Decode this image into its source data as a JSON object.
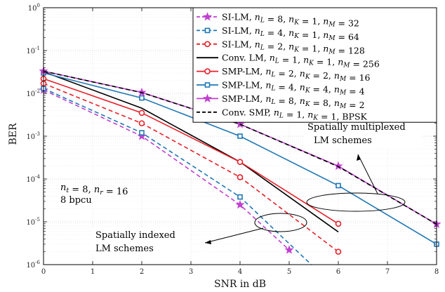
{
  "chart_data": {
    "type": "line",
    "xlabel": "SNR in dB",
    "ylabel": "BER",
    "xlim": [
      0,
      8
    ],
    "ylim": [
      1e-06,
      1
    ],
    "yscale": "log",
    "grid": true,
    "legend_position": "top-right",
    "x_ticks": [
      "0",
      "1",
      "2",
      "3",
      "4",
      "5",
      "6",
      "7",
      "8"
    ],
    "y_ticks": [
      {
        "base": "10",
        "exp": "-6"
      },
      {
        "base": "10",
        "exp": "-5"
      },
      {
        "base": "10",
        "exp": "-4"
      },
      {
        "base": "10",
        "exp": "-3"
      },
      {
        "base": "10",
        "exp": "-2"
      },
      {
        "base": "10",
        "exp": "-1"
      },
      {
        "base": "10",
        "exp": "0"
      }
    ],
    "series": [
      {
        "name": "SI-LM, n_L = 8, n_K = 1, n_M = 32",
        "legend_parts": [
          [
            "SI-LM, ",
            false
          ],
          [
            "n",
            true
          ],
          [
            "L",
            "sub"
          ],
          [
            " = 8, ",
            false
          ],
          [
            "n",
            true
          ],
          [
            "K",
            "sub"
          ],
          [
            " = 1, ",
            false
          ],
          [
            "n",
            true
          ],
          [
            "M",
            "sub"
          ],
          [
            " = 32",
            false
          ]
        ],
        "color": "#c040d0",
        "dash": "6 4",
        "marker": "star",
        "x": [
          0,
          2,
          4,
          5
        ],
        "y": [
          0.012,
          0.001,
          2.5e-05,
          2.2e-06
        ]
      },
      {
        "name": "SI-LM, n_L = 4, n_K = 1, n_M = 64",
        "legend_parts": [
          [
            "SI-LM, ",
            false
          ],
          [
            "n",
            true
          ],
          [
            "L",
            "sub"
          ],
          [
            " = 4, ",
            false
          ],
          [
            "n",
            true
          ],
          [
            "K",
            "sub"
          ],
          [
            " = 1, ",
            false
          ],
          [
            "n",
            true
          ],
          [
            "M",
            "sub"
          ],
          [
            " = 64",
            false
          ]
        ],
        "color": "#1f77b4",
        "dash": "6 4",
        "marker": "square",
        "x": [
          0,
          2,
          4,
          5.45
        ],
        "y": [
          0.013,
          0.0012,
          3.8e-05,
          1e-06
        ]
      },
      {
        "name": "SI-LM, n_L = 2, n_K = 1, n_M = 128",
        "legend_parts": [
          [
            "SI-LM, ",
            false
          ],
          [
            "n",
            true
          ],
          [
            "L",
            "sub"
          ],
          [
            " = 2, ",
            false
          ],
          [
            "n",
            true
          ],
          [
            "K",
            "sub"
          ],
          [
            " = 1, ",
            false
          ],
          [
            "n",
            true
          ],
          [
            "M",
            "sub"
          ],
          [
            " = 128",
            false
          ]
        ],
        "color": "#e8202a",
        "dash": "6 4",
        "marker": "circle",
        "x": [
          0,
          2,
          4,
          6
        ],
        "y": [
          0.017,
          0.002,
          0.00011,
          2e-06
        ]
      },
      {
        "name": "Conv. LM, n_L = 1, n_K = 1, n_M = 256",
        "legend_parts": [
          [
            "Conv. LM, ",
            false
          ],
          [
            "n",
            true
          ],
          [
            "L",
            "sub"
          ],
          [
            " = 1, ",
            false
          ],
          [
            "n",
            true
          ],
          [
            "K",
            "sub"
          ],
          [
            " = 1, ",
            false
          ],
          [
            "n",
            true
          ],
          [
            "M",
            "sub"
          ],
          [
            " = 256",
            false
          ]
        ],
        "color": "#000000",
        "dash": "",
        "marker": "none",
        "x": [
          0,
          2,
          4,
          6
        ],
        "y": [
          0.032,
          0.0045,
          0.00025,
          5.8e-06
        ]
      },
      {
        "name": "SMP-LM, n_L = 2, n_K = 2, n_M = 16",
        "legend_parts": [
          [
            "SMP-LM, ",
            false
          ],
          [
            "n",
            true
          ],
          [
            "L",
            "sub"
          ],
          [
            " = 2, ",
            false
          ],
          [
            "n",
            true
          ],
          [
            "K",
            "sub"
          ],
          [
            " = 2, ",
            false
          ],
          [
            "n",
            true
          ],
          [
            "M",
            "sub"
          ],
          [
            " = 16",
            false
          ]
        ],
        "color": "#e8202a",
        "dash": "",
        "marker": "circle",
        "x": [
          0,
          2,
          4,
          6
        ],
        "y": [
          0.022,
          0.0035,
          0.00025,
          9e-06
        ]
      },
      {
        "name": "SMP-LM, n_L = 4, n_K = 4, n_M = 4",
        "legend_parts": [
          [
            "SMP-LM, ",
            false
          ],
          [
            "n",
            true
          ],
          [
            "L",
            "sub"
          ],
          [
            " = 4, ",
            false
          ],
          [
            "n",
            true
          ],
          [
            "K",
            "sub"
          ],
          [
            " = 4, ",
            false
          ],
          [
            "n",
            true
          ],
          [
            "M",
            "sub"
          ],
          [
            " = 4",
            false
          ]
        ],
        "color": "#1f77b4",
        "dash": "",
        "marker": "square",
        "x": [
          0,
          2,
          4,
          6,
          8
        ],
        "y": [
          0.03,
          0.0078,
          0.001,
          7e-05,
          3e-06
        ]
      },
      {
        "name": "SMP-LM, n_L = 8, n_K = 8, n_M = 2",
        "legend_parts": [
          [
            "SMP-LM, ",
            false
          ],
          [
            "n",
            true
          ],
          [
            "L",
            "sub"
          ],
          [
            " = 8, ",
            false
          ],
          [
            "n",
            true
          ],
          [
            "K",
            "sub"
          ],
          [
            " = 8, ",
            false
          ],
          [
            "n",
            true
          ],
          [
            "M",
            "sub"
          ],
          [
            " = 2",
            false
          ]
        ],
        "color": "#c040d0",
        "dash": "",
        "marker": "star",
        "x": [
          0,
          2,
          4,
          6,
          8
        ],
        "y": [
          0.033,
          0.0105,
          0.0019,
          0.0002,
          8.8e-06
        ]
      },
      {
        "name": "Conv. SMP, n_L = 1, n_K = 1, BPSK",
        "legend_parts": [
          [
            "Conv. SMP, ",
            false
          ],
          [
            "n",
            true
          ],
          [
            "L",
            "sub"
          ],
          [
            " = 1, ",
            false
          ],
          [
            "n",
            true
          ],
          [
            "K",
            "sub"
          ],
          [
            " = 1, BPSK",
            false
          ]
        ],
        "color": "#000000",
        "dash": "6 4",
        "marker": "none",
        "x": [
          0,
          2,
          4,
          6,
          8
        ],
        "y": [
          0.033,
          0.0104,
          0.0019,
          0.000195,
          8.8e-06
        ]
      }
    ],
    "annotations": {
      "params_line1": [
        [
          "n",
          true
        ],
        [
          "t",
          "sub"
        ],
        [
          " = 8, ",
          false
        ],
        [
          "n",
          true
        ],
        [
          "r",
          "sub"
        ],
        [
          " = 16",
          false
        ]
      ],
      "params_line2": "8 bpcu",
      "multiplexed_line1": "Spatially multiplexed",
      "multiplexed_line2": "LM schemes",
      "indexed_line1": "Spatially indexed",
      "indexed_line2": "LM schemes"
    }
  }
}
